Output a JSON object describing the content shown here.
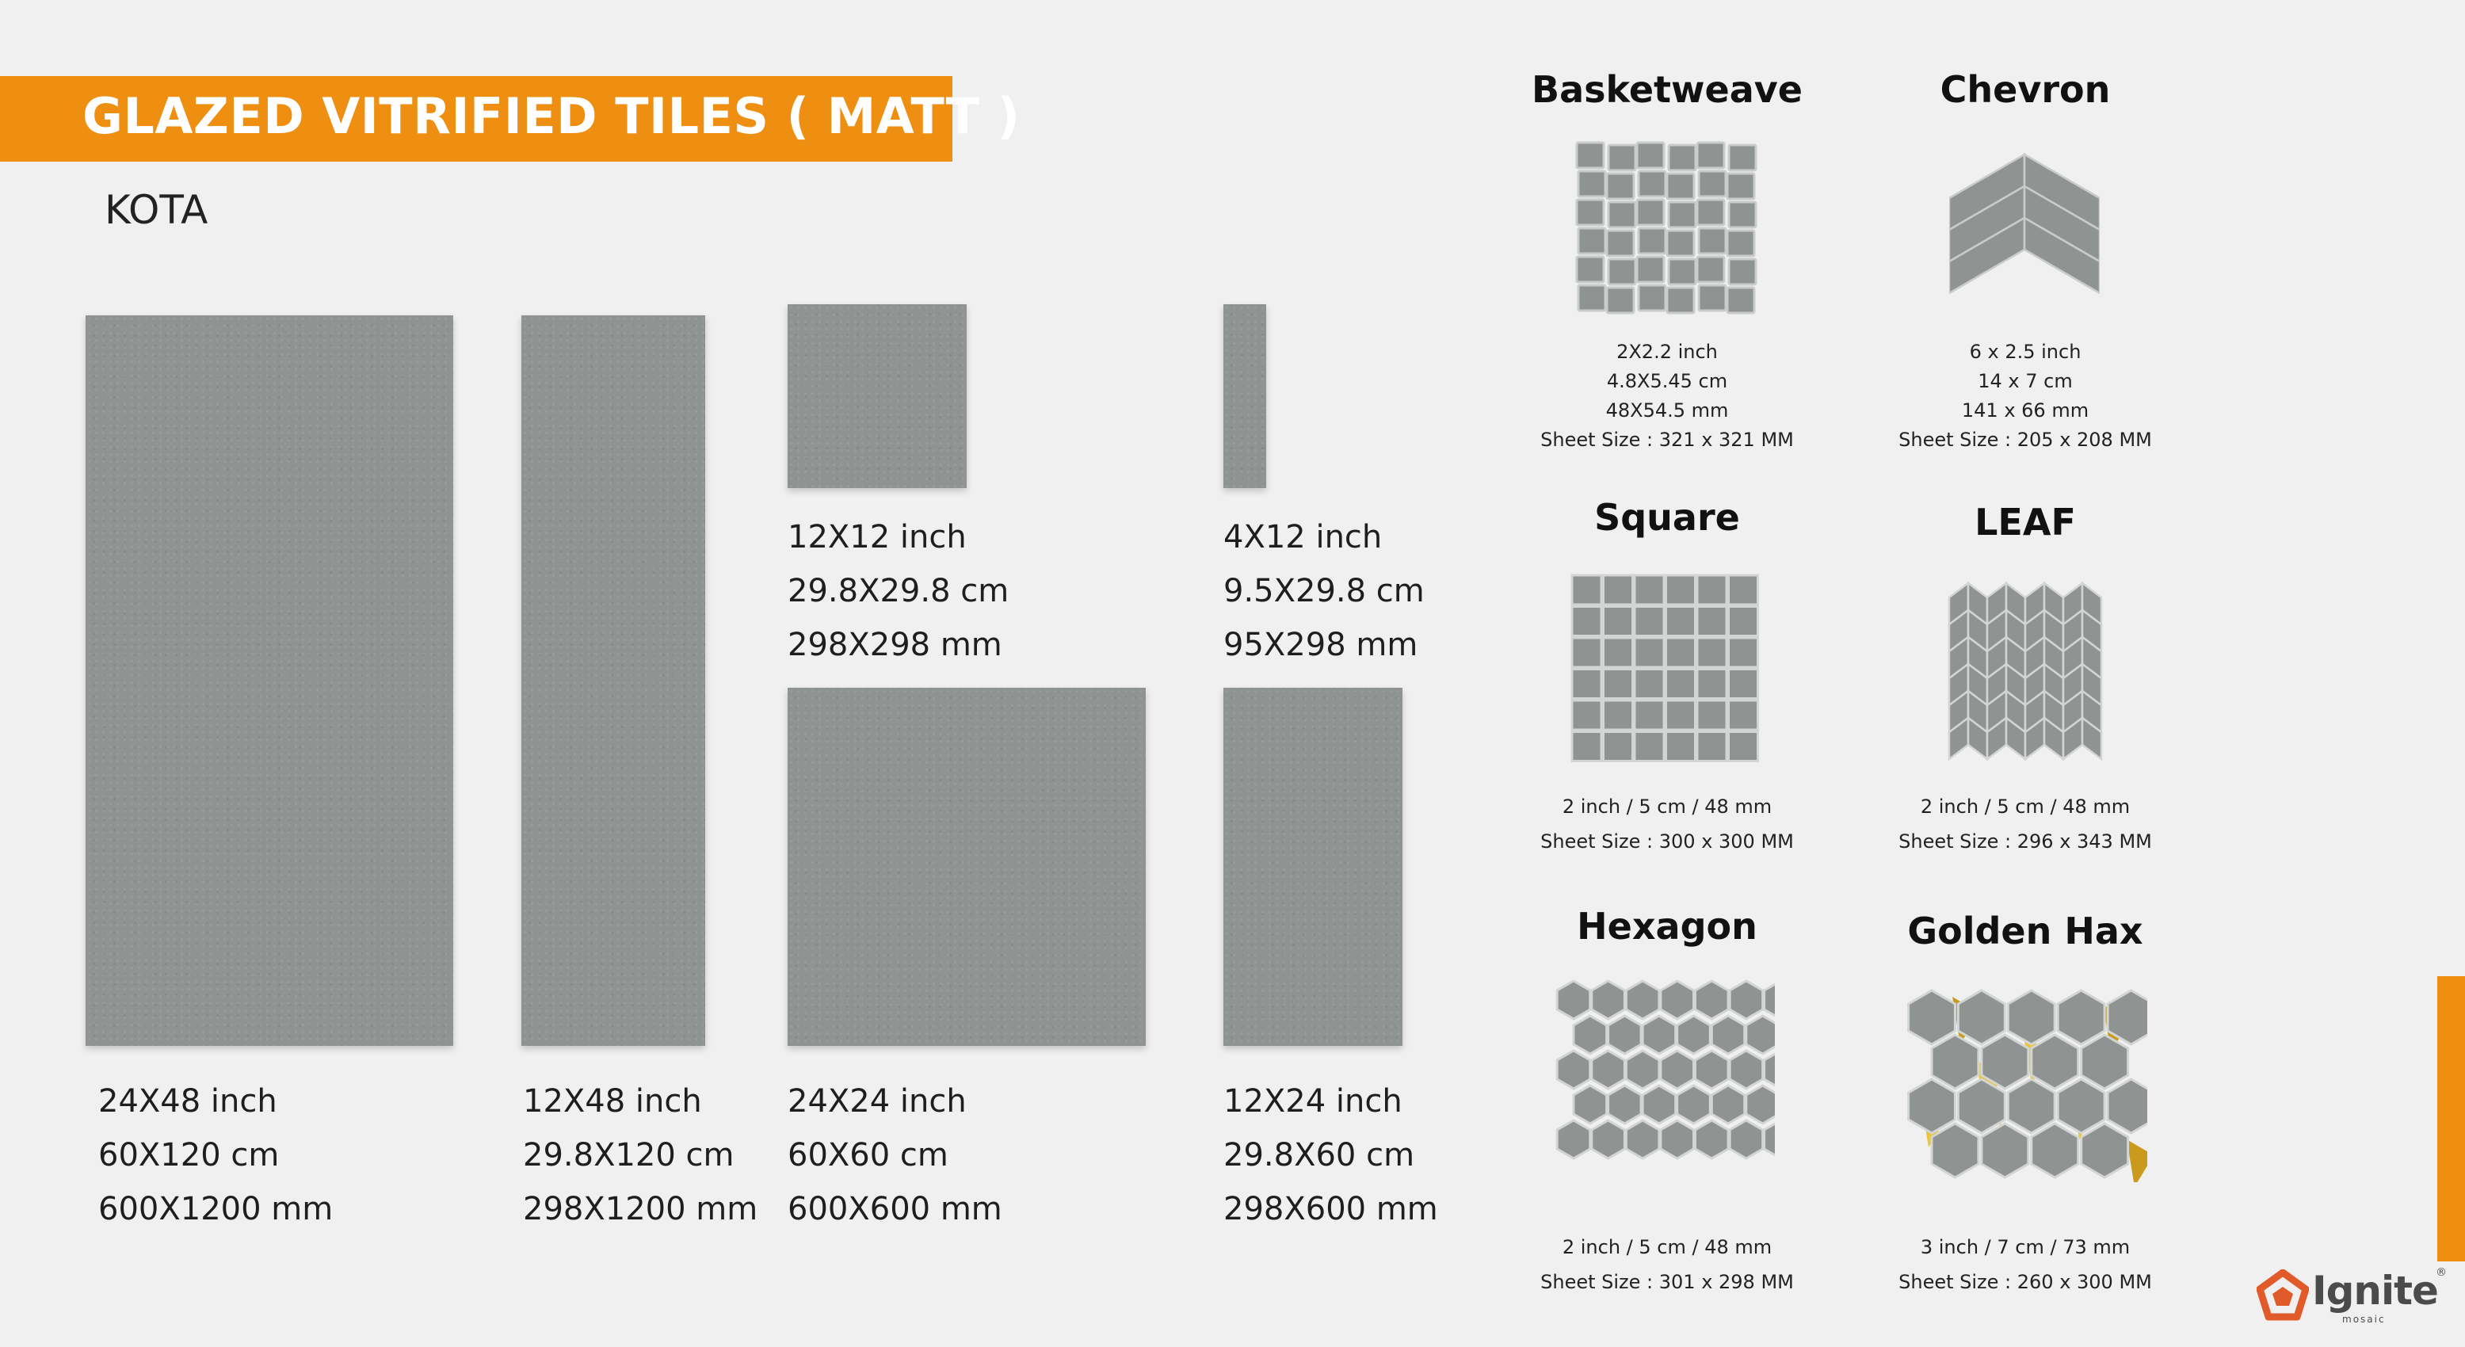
{
  "header": {
    "title": "GLAZED VITRIFIED TILES ( MATT )",
    "collection": "KOTA",
    "accent_color": "#ee8f12"
  },
  "tiles": [
    {
      "lines": [
        "24X48 inch",
        "60X120 cm",
        "600X1200 mm"
      ]
    },
    {
      "lines": [
        "12X48 inch",
        "29.8X120 cm",
        "298X1200 mm"
      ]
    },
    {
      "lines": [
        "12X12 inch",
        "29.8X29.8 cm",
        "298X298 mm"
      ]
    },
    {
      "lines": [
        "4X12 inch",
        "9.5X29.8 cm",
        "95X298 mm"
      ]
    },
    {
      "lines": [
        "24X24 inch",
        "60X60 cm",
        "600X600 mm"
      ]
    },
    {
      "lines": [
        "12X24 inch",
        "29.8X60 cm",
        "298X600 mm"
      ]
    }
  ],
  "mosaics": [
    {
      "name": "Basketweave",
      "lines": [
        "2X2.2 inch",
        "4.8X5.45 cm",
        "48X54.5 mm",
        "Sheet Size : 321 x 321 MM"
      ]
    },
    {
      "name": "Chevron",
      "lines": [
        "6  x 2.5 inch",
        "14 x 7 cm",
        "141 x 66 mm",
        "Sheet Size : 205 x 208 MM"
      ]
    },
    {
      "name": "Square",
      "lines": [
        "2 inch / 5 cm /  48 mm",
        "Sheet Size : 300 x 300 MM"
      ]
    },
    {
      "name": "LEAF",
      "lines": [
        "2 inch / 5 cm /  48 mm",
        "Sheet Size : 296 x 343 MM"
      ]
    },
    {
      "name": "Hexagon",
      "lines": [
        "2 inch / 5 cm / 48 mm",
        "Sheet Size : 301 x 298 MM"
      ]
    },
    {
      "name": "Golden Hax",
      "lines": [
        "3 inch / 7 cm / 73 mm",
        "Sheet Size : 260 x 300 MM"
      ]
    }
  ],
  "brand": {
    "name": "Ignite",
    "sub": "mosaic",
    "mark": "®"
  }
}
